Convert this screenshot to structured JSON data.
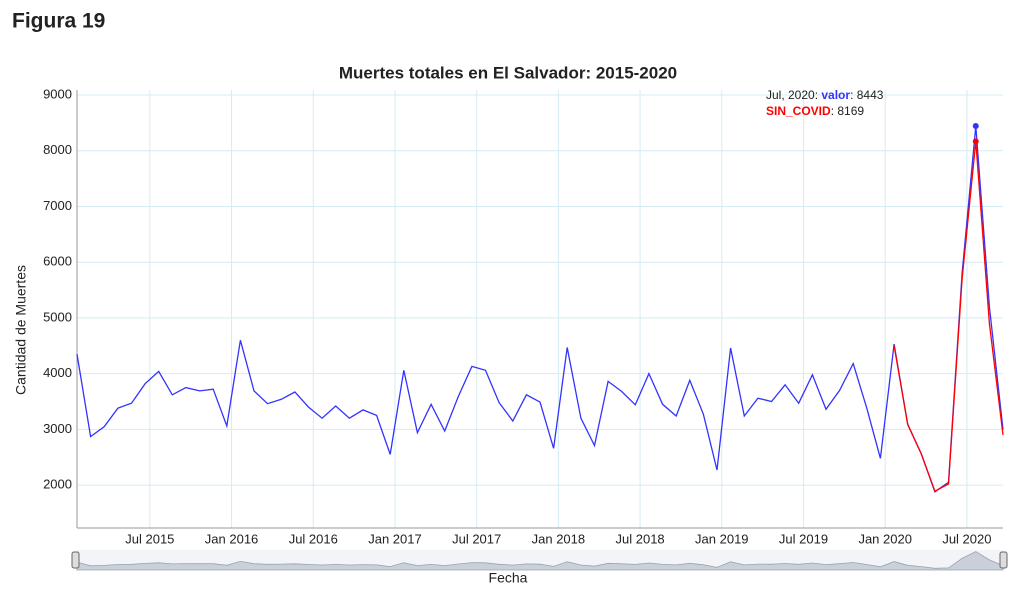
{
  "header": {
    "title": "Figura 19"
  },
  "chart_data": {
    "type": "line",
    "title": "Muertes totales en El Salvador: 2015-2020",
    "xlabel": "Fecha",
    "ylabel": "Cantidad de Muertes",
    "x": [
      "2015-01",
      "2015-02",
      "2015-03",
      "2015-04",
      "2015-05",
      "2015-06",
      "2015-07",
      "2015-08",
      "2015-09",
      "2015-10",
      "2015-11",
      "2015-12",
      "2016-01",
      "2016-02",
      "2016-03",
      "2016-04",
      "2016-05",
      "2016-06",
      "2016-07",
      "2016-08",
      "2016-09",
      "2016-10",
      "2016-11",
      "2016-12",
      "2017-01",
      "2017-02",
      "2017-03",
      "2017-04",
      "2017-05",
      "2017-06",
      "2017-07",
      "2017-08",
      "2017-09",
      "2017-10",
      "2017-11",
      "2017-12",
      "2018-01",
      "2018-02",
      "2018-03",
      "2018-04",
      "2018-05",
      "2018-06",
      "2018-07",
      "2018-08",
      "2018-09",
      "2018-10",
      "2018-11",
      "2018-12",
      "2019-01",
      "2019-02",
      "2019-03",
      "2019-04",
      "2019-05",
      "2019-06",
      "2019-07",
      "2019-08",
      "2019-09",
      "2019-10",
      "2019-11",
      "2019-12",
      "2020-01",
      "2020-02",
      "2020-03",
      "2020-04",
      "2020-05",
      "2020-06",
      "2020-07",
      "2020-08",
      "2020-09"
    ],
    "series": [
      {
        "name": "valor",
        "color": "#3333ff",
        "values": [
          4350,
          2870,
          3050,
          3380,
          3470,
          3820,
          4040,
          3620,
          3750,
          3690,
          3720,
          3060,
          4600,
          3690,
          3460,
          3540,
          3670,
          3400,
          3200,
          3420,
          3200,
          3350,
          3250,
          2550,
          4060,
          2940,
          3450,
          2970,
          3590,
          4130,
          4060,
          3480,
          3150,
          3620,
          3490,
          2660,
          4470,
          3200,
          2710,
          3860,
          3680,
          3440,
          4000,
          3450,
          3240,
          3880,
          3270,
          2270,
          4460,
          3240,
          3560,
          3500,
          3800,
          3470,
          3980,
          3360,
          3700,
          4180,
          3380,
          2480,
          4530,
          3090,
          2560,
          1880,
          2050,
          5800,
          8443,
          5200,
          3000
        ]
      },
      {
        "name": "SIN_COVID",
        "color": "#ff0000",
        "values": [
          null,
          null,
          null,
          null,
          null,
          null,
          null,
          null,
          null,
          null,
          null,
          null,
          null,
          null,
          null,
          null,
          null,
          null,
          null,
          null,
          null,
          null,
          null,
          null,
          null,
          null,
          null,
          null,
          null,
          null,
          null,
          null,
          null,
          null,
          null,
          null,
          null,
          null,
          null,
          null,
          null,
          null,
          null,
          null,
          null,
          null,
          null,
          null,
          null,
          null,
          null,
          null,
          null,
          null,
          null,
          null,
          null,
          null,
          null,
          null,
          4500,
          3090,
          2560,
          1890,
          2020,
          5700,
          8169,
          4900,
          2900
        ]
      }
    ],
    "highlight": {
      "x": "2020-07",
      "label": "Jul, 2020"
    },
    "xlim": [
      "2015-01",
      "2020-09"
    ],
    "xticks": [
      {
        "value": "2015-07",
        "label": "Jul 2015"
      },
      {
        "value": "2016-01",
        "label": "Jan 2016"
      },
      {
        "value": "2016-07",
        "label": "Jul 2016"
      },
      {
        "value": "2017-01",
        "label": "Jan 2017"
      },
      {
        "value": "2017-07",
        "label": "Jul 2017"
      },
      {
        "value": "2018-01",
        "label": "Jan 2018"
      },
      {
        "value": "2018-07",
        "label": "Jul 2018"
      },
      {
        "value": "2019-01",
        "label": "Jan 2019"
      },
      {
        "value": "2019-07",
        "label": "Jul 2019"
      },
      {
        "value": "2020-01",
        "label": "Jan 2020"
      },
      {
        "value": "2020-07",
        "label": "Jul 2020"
      }
    ],
    "ylim": [
      1230,
      9090
    ],
    "yticks": [
      2000,
      3000,
      4000,
      5000,
      6000,
      7000,
      8000,
      9000
    ],
    "grid": true
  }
}
